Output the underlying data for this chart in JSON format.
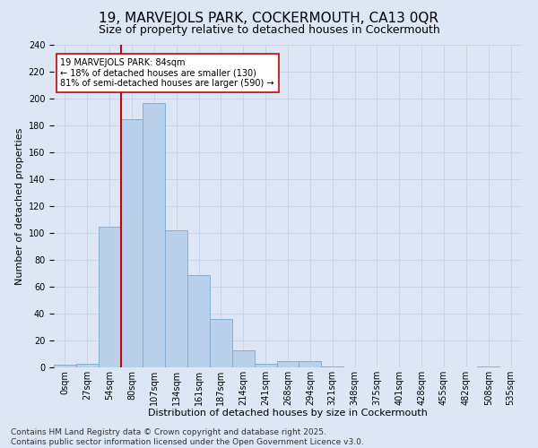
{
  "title": "19, MARVEJOLS PARK, COCKERMOUTH, CA13 0QR",
  "subtitle": "Size of property relative to detached houses in Cockermouth",
  "xlabel": "Distribution of detached houses by size in Cockermouth",
  "ylabel": "Number of detached properties",
  "categories": [
    "0sqm",
    "27sqm",
    "54sqm",
    "80sqm",
    "107sqm",
    "134sqm",
    "161sqm",
    "187sqm",
    "214sqm",
    "241sqm",
    "268sqm",
    "294sqm",
    "321sqm",
    "348sqm",
    "375sqm",
    "401sqm",
    "428sqm",
    "455sqm",
    "482sqm",
    "508sqm",
    "535sqm"
  ],
  "values": [
    2,
    3,
    105,
    185,
    197,
    102,
    69,
    36,
    13,
    3,
    5,
    5,
    1,
    0,
    0,
    0,
    0,
    0,
    0,
    1,
    0
  ],
  "bar_color": "#b8d0ea",
  "bar_edge_color": "#7aaad0",
  "grid_color": "#c8d4e8",
  "bg_color": "#dce6f5",
  "vline_x": 3,
  "vline_color": "#cc0000",
  "annotation_text": "19 MARVEJOLS PARK: 84sqm\n← 18% of detached houses are smaller (130)\n81% of semi-detached houses are larger (590) →",
  "annotation_box_color": "#ffffff",
  "annotation_box_edge": "#cc0000",
  "footer": "Contains HM Land Registry data © Crown copyright and database right 2025.\nContains public sector information licensed under the Open Government Licence v3.0.",
  "ylim": [
    0,
    240
  ],
  "yticks": [
    0,
    20,
    40,
    60,
    80,
    100,
    120,
    140,
    160,
    180,
    200,
    220,
    240
  ],
  "title_fontsize": 11,
  "subtitle_fontsize": 9,
  "xlabel_fontsize": 8,
  "ylabel_fontsize": 8,
  "tick_fontsize": 7,
  "annot_fontsize": 7,
  "footer_fontsize": 6.5
}
